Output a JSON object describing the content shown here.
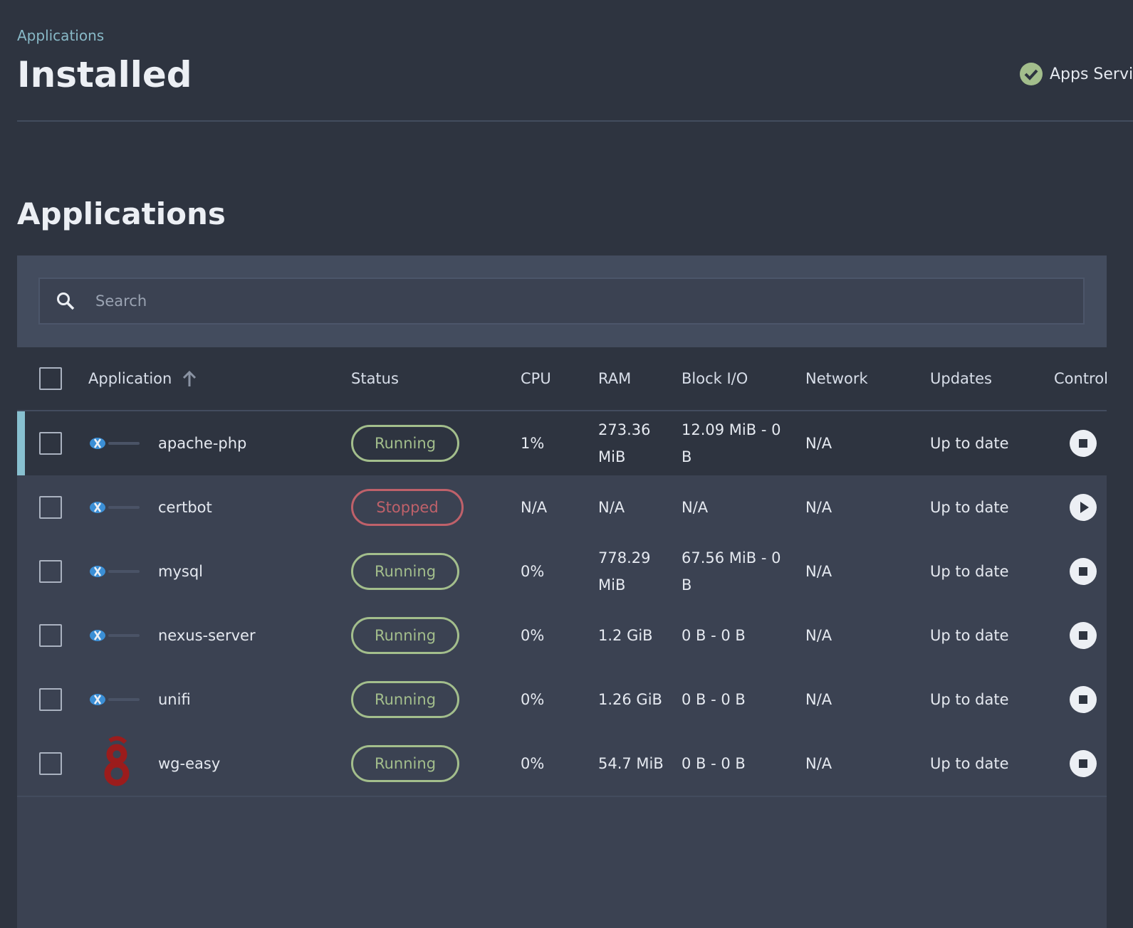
{
  "header": {
    "breadcrumb": "Applications",
    "title": "Installed",
    "service_status": "Apps Servic"
  },
  "section_title": "Applications",
  "search": {
    "placeholder": "Search"
  },
  "table": {
    "columns": [
      "Application",
      "Status",
      "CPU",
      "RAM",
      "Block I/O",
      "Network",
      "Updates",
      "Control"
    ],
    "rows": [
      {
        "name": "apache-php",
        "status": "Running",
        "cpu": "1%",
        "ram": "273.36 MiB",
        "block_io": "12.09 MiB - 0 B",
        "network": "N/A",
        "updates": "Up to date"
      },
      {
        "name": "certbot",
        "status": "Stopped",
        "cpu": "N/A",
        "ram": "N/A",
        "block_io": "N/A",
        "network": "N/A",
        "updates": "Up to date"
      },
      {
        "name": "mysql",
        "status": "Running",
        "cpu": "0%",
        "ram": "778.29 MiB",
        "block_io": "67.56 MiB - 0 B",
        "network": "N/A",
        "updates": "Up to date"
      },
      {
        "name": "nexus-server",
        "status": "Running",
        "cpu": "0%",
        "ram": "1.2 GiB",
        "block_io": "0 B - 0 B",
        "network": "N/A",
        "updates": "Up to date"
      },
      {
        "name": "unifi",
        "status": "Running",
        "cpu": "0%",
        "ram": "1.26 GiB",
        "block_io": "0 B - 0 B",
        "network": "N/A",
        "updates": "Up to date"
      },
      {
        "name": "wg-easy",
        "status": "Running",
        "cpu": "0%",
        "ram": "54.7 MiB",
        "block_io": "0 B - 0 B",
        "network": "N/A",
        "updates": "Up to date"
      }
    ]
  }
}
